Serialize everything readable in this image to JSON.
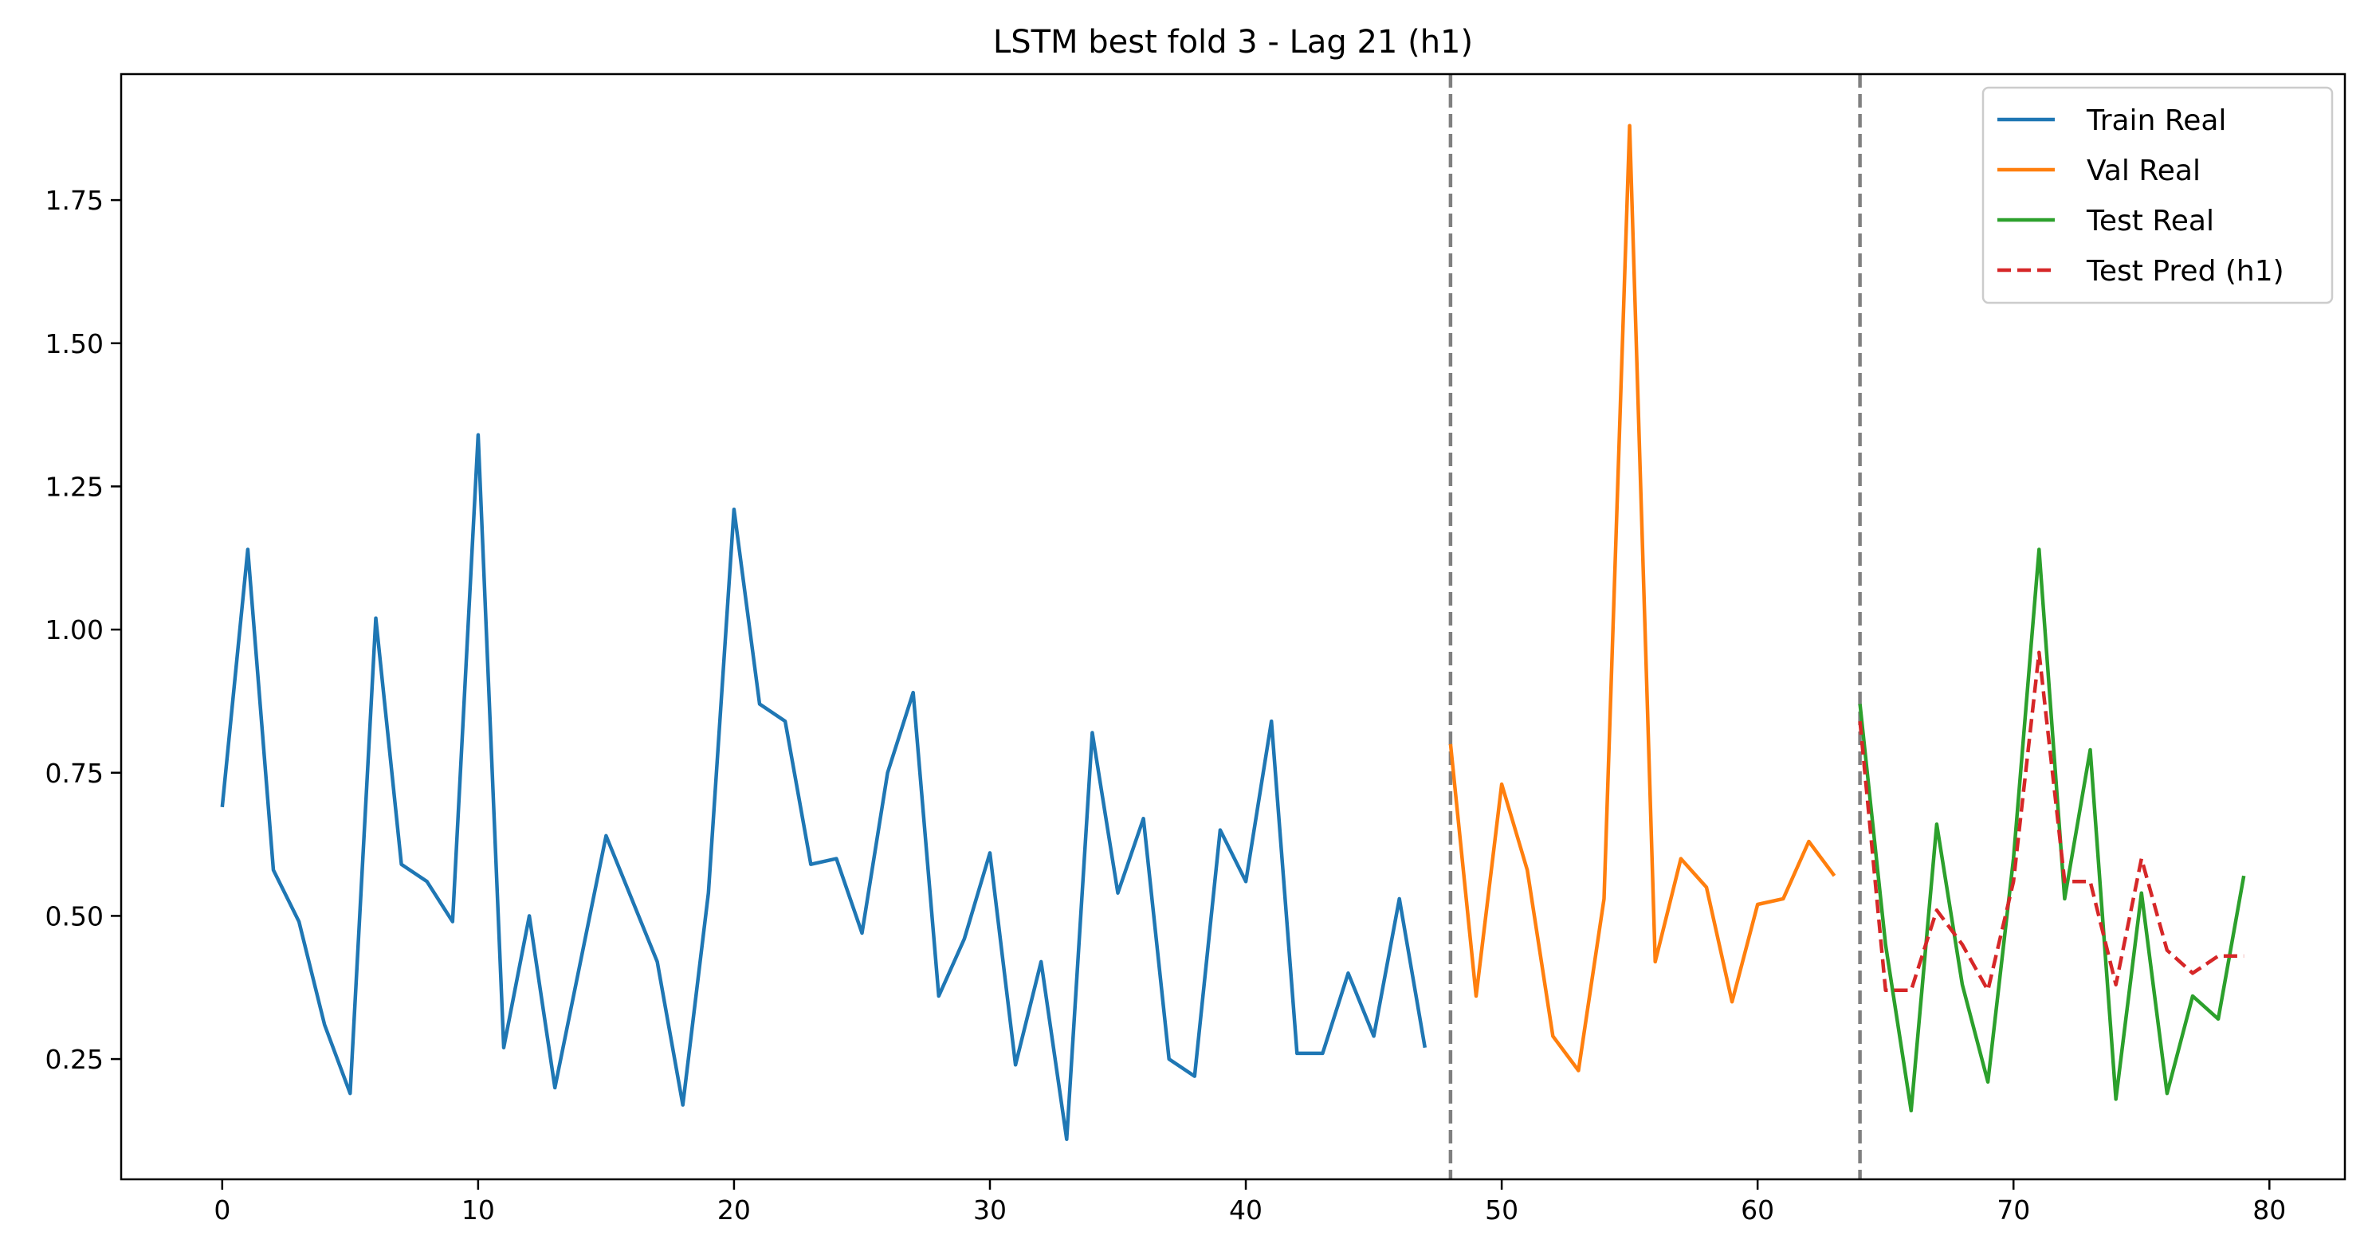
{
  "chart_data": {
    "type": "line",
    "title": "LSTM best fold 3 - Lag 21 (h1)",
    "xlabel": "",
    "ylabel": "",
    "xlim": [
      -3.95,
      82.95
    ],
    "ylim": [
      0.04,
      1.97
    ],
    "x_ticks": [
      0,
      10,
      20,
      30,
      40,
      50,
      60,
      70,
      80
    ],
    "y_ticks": [
      0.25,
      0.5,
      0.75,
      1.0,
      1.25,
      1.5,
      1.75
    ],
    "y_tick_labels": [
      "0.25",
      "0.50",
      "0.75",
      "1.00",
      "1.25",
      "1.50",
      "1.75"
    ],
    "vlines": [
      48,
      64
    ],
    "grid": false,
    "legend_position": "top-right",
    "series": [
      {
        "name": "Train Real",
        "color": "#1f77b4",
        "dash": "solid",
        "x_start": 0,
        "values": [
          0.69,
          1.14,
          0.58,
          0.49,
          0.31,
          0.19,
          1.02,
          0.59,
          0.56,
          0.49,
          1.34,
          0.27,
          0.5,
          0.2,
          0.42,
          0.64,
          0.53,
          0.42,
          0.17,
          0.54,
          1.21,
          0.87,
          0.84,
          0.59,
          0.6,
          0.47,
          0.75,
          0.89,
          0.36,
          0.46,
          0.61,
          0.24,
          0.42,
          0.11,
          0.82,
          0.54,
          0.67,
          0.25,
          0.22,
          0.65,
          0.56,
          0.84,
          0.26,
          0.26,
          0.4,
          0.29,
          0.53,
          0.27
        ]
      },
      {
        "name": "Val Real",
        "color": "#ff7f0e",
        "dash": "solid",
        "x_start": 48,
        "values": [
          0.8,
          0.36,
          0.73,
          0.58,
          0.29,
          0.23,
          0.53,
          1.88,
          0.42,
          0.6,
          0.55,
          0.35,
          0.52,
          0.53,
          0.63,
          0.57
        ]
      },
      {
        "name": "Test Real",
        "color": "#2ca02c",
        "dash": "solid",
        "x_start": 64,
        "values": [
          0.87,
          0.45,
          0.16,
          0.66,
          0.38,
          0.21,
          0.6,
          1.14,
          0.53,
          0.79,
          0.18,
          0.54,
          0.19,
          0.36,
          0.32,
          0.57
        ]
      },
      {
        "name": "Test Pred (h1)",
        "color": "#d62728",
        "dash": "dashed",
        "x_start": 64,
        "values": [
          0.84,
          0.37,
          0.37,
          0.51,
          0.45,
          0.37,
          0.56,
          0.96,
          0.56,
          0.56,
          0.38,
          0.6,
          0.44,
          0.4,
          0.43,
          0.43
        ]
      }
    ]
  }
}
